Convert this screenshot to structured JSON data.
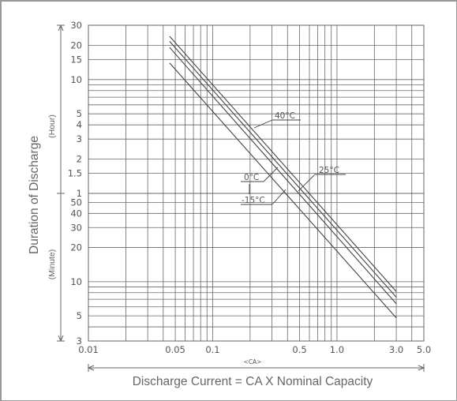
{
  "chart_data": {
    "type": "line",
    "x_scale": "log",
    "y_scale": "log",
    "ylabel": "Duration of Discharge",
    "y_units": {
      "upper": "(Hour)",
      "lower": "(Minute)"
    },
    "xlabel": "Discharge Current = CA X Nominal Capacity",
    "x_units": "<CA>",
    "xlim": [
      0.01,
      5.0
    ],
    "x_ticks": [
      {
        "value": 0.01,
        "label": "0.01"
      },
      {
        "value": 0.05,
        "label": "0.05"
      },
      {
        "value": 0.1,
        "label": "0.1"
      },
      {
        "value": 0.5,
        "label": "0.5"
      },
      {
        "value": 1.0,
        "label": "1.0"
      },
      {
        "value": 3.0,
        "label": "3.0"
      },
      {
        "value": 5.0,
        "label": "5.0"
      }
    ],
    "y_ticks_hour": [
      {
        "value": 30,
        "label": "30"
      },
      {
        "value": 20,
        "label": "20"
      },
      {
        "value": 15,
        "label": "15"
      },
      {
        "value": 10,
        "label": "10"
      },
      {
        "value": 5,
        "label": "5"
      },
      {
        "value": 4,
        "label": "4"
      },
      {
        "value": 3,
        "label": "3"
      },
      {
        "value": 2,
        "label": "2"
      },
      {
        "value": 1.5,
        "label": "1.5"
      },
      {
        "value": 1,
        "label": "1"
      }
    ],
    "y_ticks_minute": [
      {
        "value": 50,
        "label": "50"
      },
      {
        "value": 40,
        "label": "40"
      },
      {
        "value": 30,
        "label": "30"
      },
      {
        "value": 20,
        "label": "20"
      },
      {
        "value": 10,
        "label": "10"
      },
      {
        "value": 5,
        "label": "5"
      },
      {
        "value": 3,
        "label": "3"
      }
    ],
    "grid": true,
    "series": [
      {
        "name": "40°C",
        "x": [
          0.045,
          3.0
        ],
        "y_minutes": [
          1440,
          8.2
        ]
      },
      {
        "name": "25°C",
        "x": [
          0.045,
          3.0
        ],
        "y_minutes": [
          1300,
          7.3
        ]
      },
      {
        "name": "0°C",
        "x": [
          0.045,
          3.0
        ],
        "y_minutes": [
          1150,
          6.4
        ]
      },
      {
        "name": "-15°C",
        "x": [
          0.045,
          3.0
        ],
        "y_minutes": [
          840,
          4.8
        ]
      }
    ],
    "annotations": [
      {
        "series": "40°C",
        "label": "40°C"
      },
      {
        "series": "25°C",
        "label": "25°C"
      },
      {
        "series": "0°C",
        "label": "0°C"
      },
      {
        "series": "-15°C",
        "label": "-15°C"
      }
    ]
  }
}
